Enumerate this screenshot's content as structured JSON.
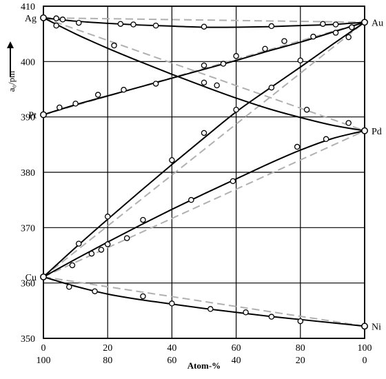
{
  "chart_data": {
    "type": "line",
    "title": "",
    "ylabel": "a₀/pm",
    "xlabel": "Atom-%",
    "xlim": [
      0,
      100
    ],
    "ylim": [
      350,
      410
    ],
    "xticks": [
      0,
      20,
      40,
      60,
      80,
      100
    ],
    "xticks_secondary": [
      "100",
      "80",
      "60",
      "40",
      "20",
      "0"
    ],
    "yticks": [
      350,
      360,
      370,
      380,
      390,
      400,
      410
    ],
    "grid": true,
    "element_labels": {
      "Ag": {
        "label": "Ag",
        "x": 0,
        "y": 407.9
      },
      "Pt": {
        "label": "Pt",
        "x": 0,
        "y": 390.4
      },
      "Cu": {
        "label": "Cu",
        "x": 0,
        "y": 361.1
      },
      "Au": {
        "label": "Au",
        "x": 100,
        "y": 407.1
      },
      "Pd": {
        "label": "Pd",
        "x": 100,
        "y": 387.5
      },
      "Ni": {
        "label": "Ni",
        "x": 100,
        "y": 352.2
      }
    },
    "series": [
      {
        "from": "Ag",
        "to": "Au",
        "ideal": [
          [
            0,
            407.9
          ],
          [
            100,
            407.1
          ]
        ],
        "curve": [
          [
            0,
            407.9
          ],
          [
            10,
            407.3
          ],
          [
            20,
            406.9
          ],
          [
            30,
            406.6
          ],
          [
            40,
            406.4
          ],
          [
            50,
            406.2
          ],
          [
            60,
            406.2
          ],
          [
            70,
            406.3
          ],
          [
            80,
            406.5
          ],
          [
            90,
            406.7
          ],
          [
            100,
            407.1
          ]
        ],
        "points": [
          [
            4,
            407.8
          ],
          [
            6,
            407.6
          ],
          [
            11,
            407.0
          ],
          [
            24,
            406.8
          ],
          [
            28,
            406.7
          ],
          [
            35,
            406.5
          ],
          [
            50,
            406.3
          ],
          [
            71,
            406.4
          ],
          [
            87,
            406.8
          ],
          [
            91,
            406.7
          ]
        ]
      },
      {
        "from": "Ag",
        "to": "Pd",
        "ideal": [
          [
            0,
            407.9
          ],
          [
            100,
            387.5
          ]
        ],
        "curve": [
          [
            0,
            407.9
          ],
          [
            10,
            405.0
          ],
          [
            20,
            402.4
          ],
          [
            30,
            400.0
          ],
          [
            40,
            397.7
          ],
          [
            50,
            395.5
          ],
          [
            60,
            393.4
          ],
          [
            70,
            391.5
          ],
          [
            80,
            389.9
          ],
          [
            90,
            388.5
          ],
          [
            100,
            387.5
          ]
        ],
        "points": [
          [
            4,
            406.5
          ],
          [
            22,
            402.9
          ],
          [
            50,
            396.2
          ],
          [
            54,
            395.7
          ],
          [
            82,
            391.3
          ],
          [
            95,
            388.9
          ]
        ]
      },
      {
        "from": "Pt",
        "to": "Au",
        "ideal": [
          [
            0,
            390.4
          ],
          [
            100,
            407.1
          ]
        ],
        "curve": [
          [
            0,
            390.4
          ],
          [
            10,
            392.2
          ],
          [
            20,
            393.8
          ],
          [
            30,
            395.4
          ],
          [
            40,
            397.0
          ],
          [
            50,
            398.6
          ],
          [
            60,
            400.2
          ],
          [
            70,
            401.9
          ],
          [
            80,
            403.5
          ],
          [
            90,
            405.3
          ],
          [
            100,
            407.1
          ]
        ],
        "points": [
          [
            5,
            391.7
          ],
          [
            10,
            392.4
          ],
          [
            17,
            394.0
          ],
          [
            25,
            394.9
          ],
          [
            35,
            396.0
          ],
          [
            50,
            399.3
          ],
          [
            56,
            399.6
          ],
          [
            60,
            401.0
          ],
          [
            69,
            402.3
          ],
          [
            75,
            403.7
          ],
          [
            84,
            404.5
          ],
          [
            91,
            405.2
          ],
          [
            96,
            406.2
          ]
        ]
      },
      {
        "from": "Cu",
        "to": "Au",
        "ideal": [
          [
            0,
            361.1
          ],
          [
            100,
            407.1
          ]
        ],
        "curve": [
          [
            0,
            361.1
          ],
          [
            10,
            366.4
          ],
          [
            20,
            371.5
          ],
          [
            30,
            376.5
          ],
          [
            40,
            381.4
          ],
          [
            50,
            386.2
          ],
          [
            60,
            390.9
          ],
          [
            70,
            395.0
          ],
          [
            80,
            399.0
          ],
          [
            90,
            403.1
          ],
          [
            100,
            407.1
          ]
        ],
        "points": [
          [
            11,
            367.1
          ],
          [
            20,
            372.0
          ],
          [
            40,
            382.2
          ],
          [
            50,
            387.1
          ],
          [
            60,
            391.3
          ],
          [
            71,
            395.3
          ],
          [
            80,
            400.2
          ],
          [
            95,
            404.4
          ]
        ]
      },
      {
        "from": "Cu",
        "to": "Pd",
        "ideal": [
          [
            0,
            361.1
          ],
          [
            100,
            387.5
          ]
        ],
        "curve": [
          [
            0,
            361.1
          ],
          [
            10,
            364.3
          ],
          [
            20,
            367.4
          ],
          [
            30,
            370.4
          ],
          [
            40,
            373.3
          ],
          [
            50,
            376.1
          ],
          [
            60,
            378.8
          ],
          [
            70,
            381.5
          ],
          [
            80,
            384.0
          ],
          [
            90,
            386.1
          ],
          [
            100,
            387.5
          ]
        ],
        "points": [
          [
            9,
            363.2
          ],
          [
            15,
            365.3
          ],
          [
            18,
            366.0
          ],
          [
            20,
            367.0
          ],
          [
            26,
            368.1
          ],
          [
            31,
            371.4
          ],
          [
            46,
            375.0
          ],
          [
            59,
            378.4
          ],
          [
            79,
            384.6
          ],
          [
            88,
            386.0
          ]
        ]
      },
      {
        "from": "Cu",
        "to": "Ni",
        "ideal": [
          [
            0,
            361.1
          ],
          [
            100,
            352.2
          ]
        ],
        "curve": [
          [
            0,
            361.1
          ],
          [
            10,
            359.4
          ],
          [
            20,
            358.0
          ],
          [
            30,
            357.0
          ],
          [
            40,
            356.2
          ],
          [
            50,
            355.4
          ],
          [
            60,
            354.7
          ],
          [
            70,
            354.0
          ],
          [
            80,
            353.4
          ],
          [
            90,
            352.8
          ],
          [
            100,
            352.2
          ]
        ],
        "points": [
          [
            8,
            359.3
          ],
          [
            16,
            358.5
          ],
          [
            31,
            357.6
          ],
          [
            40,
            356.3
          ],
          [
            52,
            355.3
          ],
          [
            63,
            354.7
          ],
          [
            71,
            353.9
          ],
          [
            80,
            353.1
          ]
        ]
      }
    ]
  }
}
